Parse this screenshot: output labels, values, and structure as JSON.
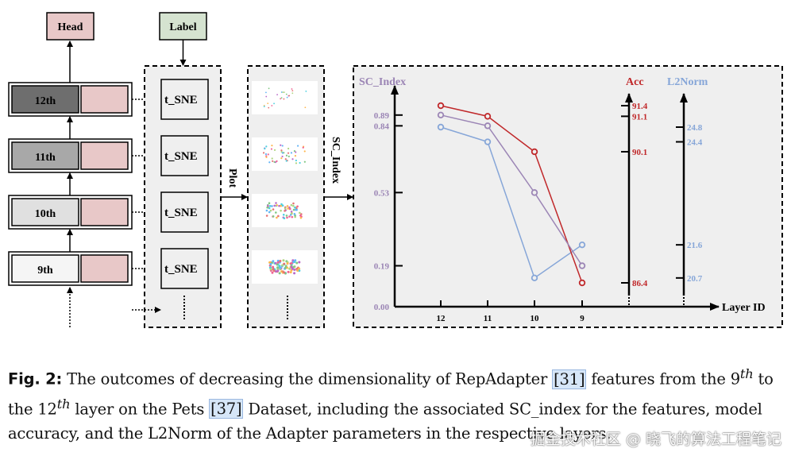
{
  "diagram": {
    "head_label": "Head",
    "label_box": "Label",
    "layers": [
      "12th",
      "11th",
      "10th",
      "9th"
    ],
    "layer_colors": [
      "#6e6e6e",
      "#a8a8a8",
      "#e0e0e0",
      "#f5f5f5"
    ],
    "tsne_label": "t_SNE",
    "plot_label": "Plot",
    "sc_index_arrow_label": "SC_Index"
  },
  "chart_data": {
    "type": "line",
    "xlabel": "Layer ID",
    "categories": [
      "12",
      "11",
      "10",
      "9"
    ],
    "series": [
      {
        "name": "SC_Index",
        "axis": "SC_Index",
        "color": "#9b85b5",
        "values": [
          0.89,
          0.84,
          0.53,
          0.19
        ]
      },
      {
        "name": "Acc",
        "axis": "Acc",
        "color": "#c0282a",
        "values": [
          91.4,
          91.1,
          90.1,
          86.4
        ]
      },
      {
        "name": "L2Norm",
        "axis": "L2Norm",
        "color": "#86a6d8",
        "values": [
          24.8,
          24.4,
          20.7,
          21.6
        ]
      }
    ],
    "axes": {
      "SC_Index": {
        "label": "SC_Index",
        "ticks": [
          "0.89",
          "0.84",
          "0.53",
          "0.19",
          "0.00"
        ]
      },
      "Acc": {
        "label": "Acc",
        "ticks": [
          "91.4",
          "91.1",
          "90.1",
          "86.4"
        ]
      },
      "L2Norm": {
        "label": "L2Norm",
        "ticks": [
          "24.8",
          "24.4",
          "21.6",
          "20.7"
        ]
      }
    }
  },
  "caption": {
    "fig_label": "Fig. 2:",
    "t1": " The outcomes of decreasing the dimensionality of RepAdapter ",
    "ref1": "[31]",
    "t2": " features from the 9",
    "sup1": "th",
    "t3": " to the 12",
    "sup2": "th",
    "t4": " layer on the Pets ",
    "ref2": "[37]",
    "t5": " Dataset, including the associated SC_index for the features, model accuracy, and the L2Norm of the Adapter parameters in the respective layers."
  },
  "watermark": "掘金技术社区 @ 晓飞的算法工程笔记"
}
